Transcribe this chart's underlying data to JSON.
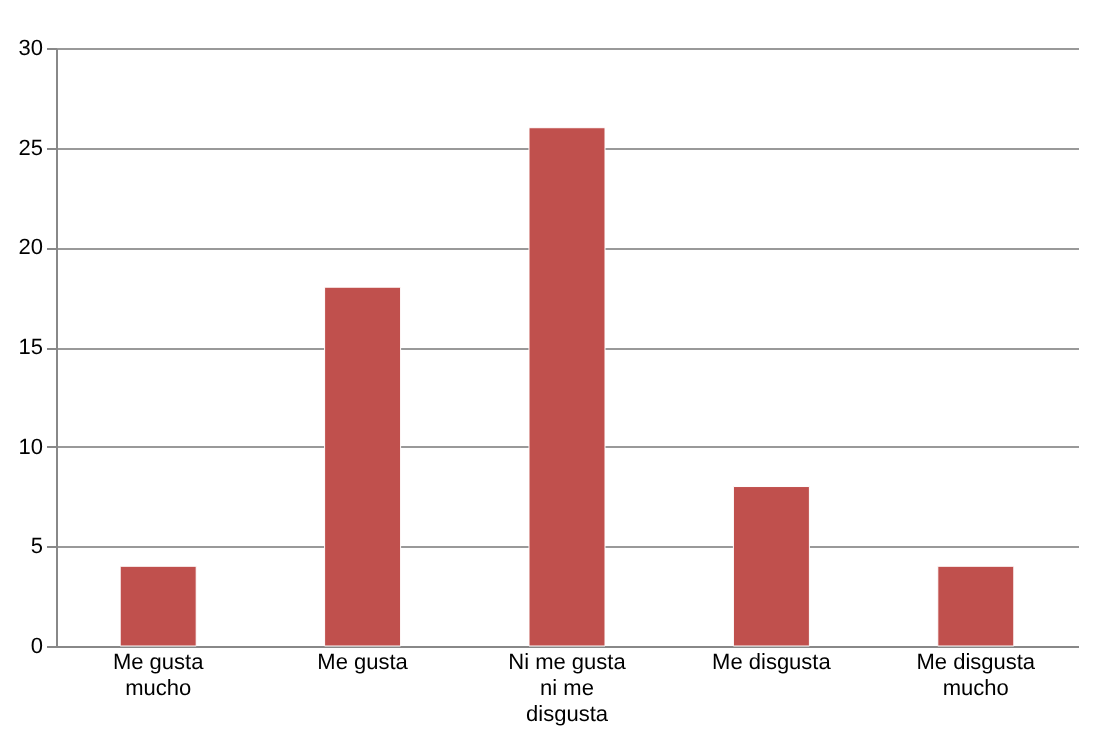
{
  "chart_data": {
    "type": "bar",
    "categories": [
      "Me gusta mucho",
      "Me gusta",
      "Ni me gusta ni me disgusta",
      "Me disgusta",
      "Me disgusta mucho"
    ],
    "values": [
      4,
      18,
      26,
      8,
      4
    ],
    "color": "#c0504d",
    "ylim": [
      0,
      30
    ],
    "yticks": [
      0,
      5,
      10,
      15,
      20,
      25,
      30
    ],
    "grid": "y"
  }
}
